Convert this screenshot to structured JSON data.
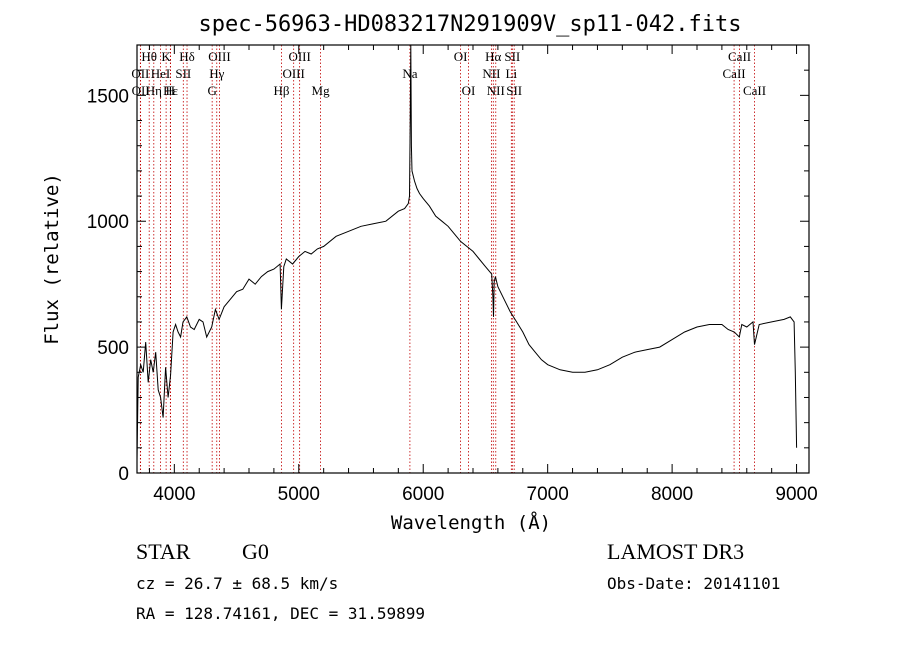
{
  "chart_data": {
    "type": "line",
    "title": "spec-56963-HD083217N291909V_sp11-042.fits",
    "xlabel": "Wavelength (Å)",
    "ylabel": "Flux (relative)",
    "xlim": [
      3700,
      9100
    ],
    "ylim": [
      0,
      1700
    ],
    "x_ticks": [
      4000,
      5000,
      6000,
      7000,
      8000,
      9000
    ],
    "y_ticks": [
      0,
      500,
      1000,
      1500
    ],
    "grid": false,
    "series": [
      {
        "x": [
          3700,
          3710,
          3730,
          3750,
          3770,
          3790,
          3810,
          3830,
          3850,
          3870,
          3890,
          3910,
          3930,
          3950,
          3970,
          3990,
          4010,
          4030,
          4050,
          4070,
          4100,
          4130,
          4160,
          4200,
          4230,
          4260,
          4300,
          4330,
          4360,
          4400,
          4450,
          4500,
          4550,
          4600,
          4650,
          4700,
          4750,
          4800,
          4850,
          4860,
          4880,
          4900,
          4950,
          5000,
          5050,
          5100,
          5150,
          5200,
          5300,
          5400,
          5500,
          5600,
          5700,
          5800,
          5850,
          5880,
          5890,
          5895,
          5900,
          5905,
          5910,
          5930,
          5950,
          5970,
          6000,
          6050,
          6100,
          6150,
          6200,
          6250,
          6300,
          6350,
          6400,
          6450,
          6500,
          6550,
          6560,
          6565,
          6570,
          6580,
          6600,
          6650,
          6700,
          6750,
          6800,
          6850,
          6900,
          6950,
          7000,
          7100,
          7200,
          7300,
          7400,
          7500,
          7600,
          7700,
          7800,
          7900,
          8000,
          8100,
          8200,
          8300,
          8400,
          8450,
          8500,
          8540,
          8560,
          8600,
          8650,
          8662,
          8700,
          8800,
          8900,
          8950,
          8980,
          8990,
          9000
        ],
        "y": [
          50,
          380,
          430,
          400,
          520,
          360,
          450,
          400,
          480,
          330,
          300,
          220,
          420,
          300,
          390,
          560,
          590,
          560,
          540,
          600,
          620,
          580,
          570,
          610,
          600,
          540,
          580,
          650,
          610,
          660,
          690,
          720,
          730,
          770,
          750,
          780,
          800,
          810,
          830,
          650,
          820,
          850,
          830,
          860,
          880,
          870,
          890,
          900,
          940,
          960,
          980,
          990,
          1000,
          1040,
          1050,
          1070,
          1100,
          1400,
          1700,
          1300,
          1200,
          1160,
          1130,
          1110,
          1090,
          1060,
          1020,
          1000,
          980,
          950,
          920,
          900,
          880,
          850,
          820,
          790,
          700,
          620,
          760,
          780,
          740,
          690,
          640,
          600,
          560,
          510,
          480,
          450,
          430,
          410,
          400,
          400,
          410,
          430,
          460,
          480,
          490,
          500,
          530,
          560,
          580,
          590,
          590,
          570,
          560,
          540,
          590,
          580,
          600,
          510,
          590,
          600,
          610,
          620,
          600,
          400,
          100
        ]
      }
    ],
    "line_markers": [
      {
        "label": "Hθ",
        "x": 3798,
        "row": 0
      },
      {
        "label": "K",
        "x": 3934,
        "row": 0
      },
      {
        "label": "Hδ",
        "x": 4102,
        "row": 0
      },
      {
        "label": "OIII",
        "x": 4363,
        "row": 0
      },
      {
        "label": "OIII",
        "x": 5007,
        "row": 0
      },
      {
        "label": "OI",
        "x": 6300,
        "row": 0
      },
      {
        "label": "Hα",
        "x": 6563,
        "row": 0
      },
      {
        "label": "SII",
        "x": 6716,
        "row": 0
      },
      {
        "label": "CaII",
        "x": 8542,
        "row": 0
      },
      {
        "label": "OII",
        "x": 3727,
        "row": 1
      },
      {
        "label": "HeI",
        "x": 3889,
        "row": 1
      },
      {
        "label": "SII",
        "x": 4072,
        "row": 1
      },
      {
        "label": "Hγ",
        "x": 4341,
        "row": 1
      },
      {
        "label": "OIII",
        "x": 4959,
        "row": 1
      },
      {
        "label": "Na",
        "x": 5893,
        "row": 1
      },
      {
        "label": "NII",
        "x": 6548,
        "row": 1
      },
      {
        "label": "Li",
        "x": 6708,
        "row": 1
      },
      {
        "label": "CaII",
        "x": 8498,
        "row": 1
      },
      {
        "label": "OII",
        "x": 3729,
        "row": 2
      },
      {
        "label": "Hε",
        "x": 3970,
        "row": 2
      },
      {
        "label": "Hη",
        "x": 3835,
        "row": 2
      },
      {
        "label": "H",
        "x": 3968,
        "row": 2
      },
      {
        "label": "G",
        "x": 4304,
        "row": 2
      },
      {
        "label": "Hβ",
        "x": 4861,
        "row": 2
      },
      {
        "label": "Mg",
        "x": 5175,
        "row": 2
      },
      {
        "label": "OI",
        "x": 6364,
        "row": 2
      },
      {
        "label": "NII",
        "x": 6583,
        "row": 2
      },
      {
        "label": "SII",
        "x": 6731,
        "row": 2
      },
      {
        "label": "CaII",
        "x": 8662,
        "row": 2
      }
    ]
  },
  "info": {
    "class_label": "STAR",
    "subclass_label": "G0",
    "survey": "LAMOST DR3",
    "cz": "cz = 26.7 ± 68.5 km/s",
    "obs_date": "Obs-Date: 20141101",
    "coords": "RA = 128.74161, DEC =  31.59899"
  },
  "colors": {
    "line_marker": "#c00000",
    "spectrum": "#000000"
  }
}
